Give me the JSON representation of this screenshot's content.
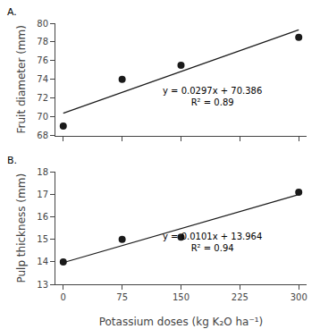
{
  "chart_data": [
    {
      "type": "scatter",
      "title": "A.",
      "ylabel": "Fruit diameter (mm)",
      "series": [
        {
          "type": "scatter",
          "x": [
            0,
            75,
            150,
            300
          ],
          "values": [
            69.0,
            74.0,
            75.5,
            78.5
          ],
          "color": "#1a1a1a",
          "marker": "circle"
        },
        {
          "type": "line",
          "x": [
            0,
            300
          ],
          "values": [
            70.386,
            79.296
          ],
          "color": "#1a1a1a",
          "line_style": "solid"
        }
      ],
      "annotations": [
        {
          "text": [
            "y = 0.0297x + 70.386",
            "R² = 0.89"
          ],
          "x": 190,
          "y": 70.8
        }
      ],
      "xlim": [
        -10,
        310
      ],
      "xticks": [
        0,
        75,
        150,
        225,
        300
      ],
      "ylim": [
        68,
        80
      ],
      "yticks": [
        68,
        70,
        72,
        74,
        76,
        78,
        80
      ],
      "grid": false,
      "tick_labels": "y"
    },
    {
      "type": "scatter",
      "title": "B.",
      "xlabel": "Potassium doses (kg K₂O ha⁻¹)",
      "ylabel": "Pulp thickness (mm)",
      "series": [
        {
          "type": "scatter",
          "x": [
            0,
            75,
            150,
            300
          ],
          "values": [
            14.0,
            15.0,
            15.1,
            17.1
          ],
          "color": "#1a1a1a",
          "marker": "circle"
        },
        {
          "type": "line",
          "x": [
            0,
            300
          ],
          "values": [
            13.964,
            16.994
          ],
          "color": "#1a1a1a",
          "line_style": "solid"
        }
      ],
      "annotations": [
        {
          "text": [
            "y = 0.0101x + 13.964",
            "R² = 0.94"
          ],
          "x": 190,
          "y": 14.3
        }
      ],
      "xlim": [
        -10,
        310
      ],
      "xticks": [
        0,
        75,
        150,
        225,
        300
      ],
      "ylim": [
        13,
        18
      ],
      "yticks": [
        13,
        14,
        15,
        16,
        17,
        18
      ],
      "grid": false,
      "tick_labels": true
    }
  ]
}
